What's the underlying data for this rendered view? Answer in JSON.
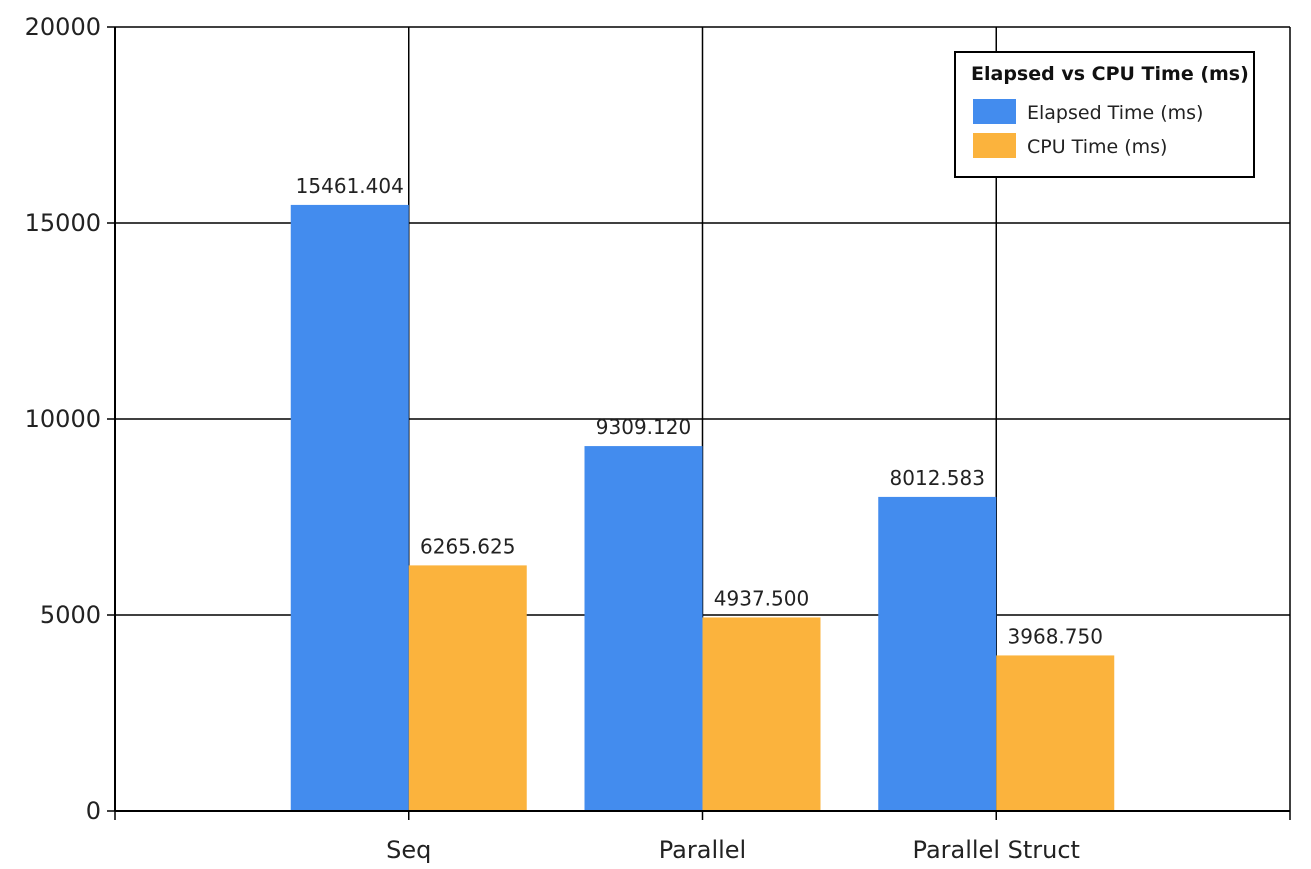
{
  "chart_data": {
    "type": "bar",
    "categories": [
      "Seq",
      "Parallel",
      "Parallel Struct"
    ],
    "series": [
      {
        "name": "Elapsed Time (ms)",
        "values": [
          15461.404,
          9309.12,
          8012.583
        ],
        "labels": [
          "15461.404",
          "9309.120",
          "8012.583"
        ],
        "color": "#438cee"
      },
      {
        "name": "CPU Time (ms)",
        "values": [
          6265.625,
          4937.5,
          3968.75
        ],
        "labels": [
          "6265.625",
          "4937.500",
          "3968.750"
        ],
        "color": "#fbb33d"
      }
    ],
    "y_ticks": [
      "0",
      "5000",
      "10000",
      "15000",
      "20000"
    ],
    "ylim": [
      0,
      20000
    ],
    "grid": true,
    "legend": {
      "title": "Elapsed vs CPU Time (ms)",
      "position": "top-right"
    }
  }
}
